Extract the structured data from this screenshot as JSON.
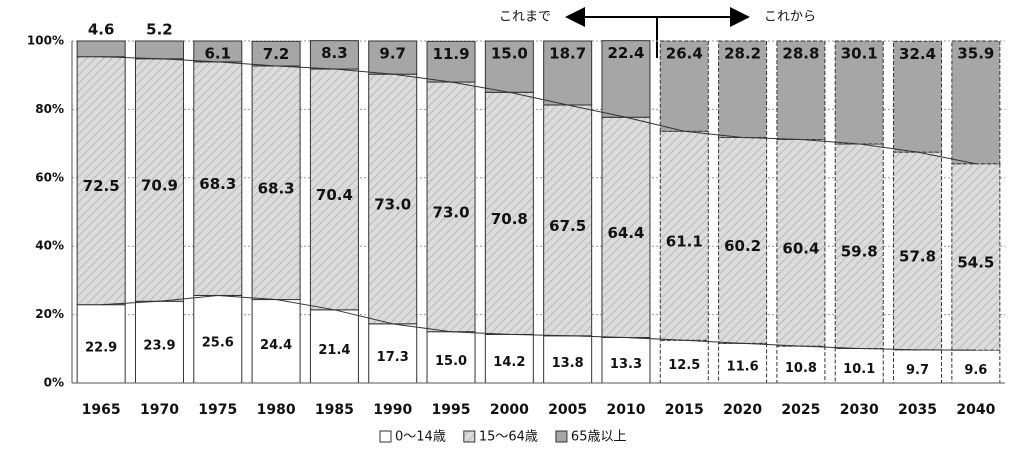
{
  "chart_data": {
    "type": "stacked_bar",
    "categories": [
      "1965",
      "1970",
      "1975",
      "1980",
      "1985",
      "1990",
      "1995",
      "2000",
      "2005",
      "2010",
      "2015",
      "2020",
      "2025",
      "2030",
      "2035",
      "2040"
    ],
    "series": [
      {
        "name": "0～14歳",
        "color": "#ffffff",
        "values": [
          22.9,
          23.9,
          25.6,
          24.4,
          21.4,
          17.3,
          15.0,
          14.2,
          13.8,
          13.3,
          12.5,
          11.6,
          10.8,
          10.1,
          9.7,
          9.6
        ],
        "value_labels": [
          "22.9",
          "23.9",
          "25.6",
          "24.4",
          "21.4",
          "17.3",
          "15.0",
          "14.2",
          "13.8",
          "13.3",
          "12.5",
          "11.6",
          "10.8",
          "10.1",
          "9.7",
          "9.6"
        ]
      },
      {
        "name": "15～64歳",
        "color": "#d4d4d4",
        "values": [
          72.5,
          70.9,
          68.3,
          68.3,
          70.4,
          73.0,
          73.0,
          70.8,
          67.5,
          64.4,
          61.1,
          60.2,
          60.4,
          59.8,
          57.8,
          54.5
        ],
        "value_labels": [
          "72.5",
          "70.9",
          "68.3",
          "68.3",
          "70.4",
          "73.0",
          "73.0",
          "70.8",
          "67.5",
          "64.4",
          "61.1",
          "60.2",
          "60.4",
          "59.8",
          "57.8",
          "54.5"
        ]
      },
      {
        "name": "65歳以上",
        "color": "#a6a6a6",
        "values": [
          4.6,
          5.2,
          6.1,
          7.2,
          8.3,
          9.7,
          11.9,
          15.0,
          18.7,
          22.4,
          26.4,
          28.2,
          28.8,
          30.1,
          32.4,
          35.9
        ],
        "value_labels": [
          "4.6",
          "5.2",
          "6.1",
          "7.2",
          "8.3",
          "9.7",
          "11.9",
          "15.0",
          "18.7",
          "22.4",
          "26.4",
          "28.2",
          "28.8",
          "30.1",
          "32.4",
          "35.9"
        ]
      }
    ],
    "ylim": [
      0,
      100
    ],
    "yticks": [
      {
        "value": 0,
        "label": "0%"
      },
      {
        "value": 20,
        "label": "20%"
      },
      {
        "value": 40,
        "label": "40%"
      },
      {
        "value": 60,
        "label": "60%"
      },
      {
        "value": 80,
        "label": "80%"
      },
      {
        "value": 100,
        "label": "100%"
      }
    ],
    "grid": true,
    "projected_from": "2015",
    "annotations": [
      "これまで",
      "これから"
    ],
    "legend": "bottom"
  }
}
